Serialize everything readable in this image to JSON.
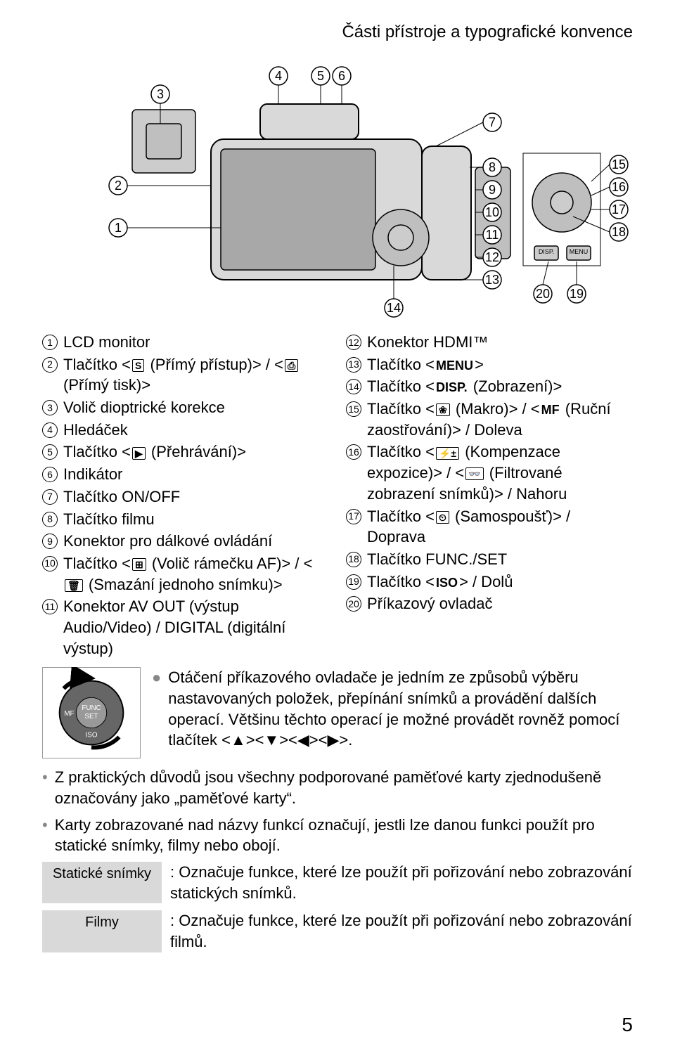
{
  "header": "Části přístroje a typografické konvence",
  "page_number": "5",
  "diagram": {
    "callouts": [
      "1",
      "2",
      "3",
      "4",
      "5",
      "6",
      "7",
      "8",
      "9",
      "10",
      "11",
      "12",
      "13",
      "14",
      "15",
      "16",
      "17",
      "18",
      "19",
      "20"
    ]
  },
  "left_items": [
    {
      "n": "1",
      "text": "LCD monitor"
    },
    {
      "n": "2",
      "text": "Tlačítko <",
      "ico": "S",
      "text2": " (Přímý přístup)> / <",
      "ico2": "⎙",
      "text3": " (Přímý tisk)>"
    },
    {
      "n": "3",
      "text": "Volič dioptrické korekce"
    },
    {
      "n": "4",
      "text": "Hledáček"
    },
    {
      "n": "5",
      "text": "Tlačítko <",
      "ico": "▶",
      "text2": " (Přehrávání)>"
    },
    {
      "n": "6",
      "text": "Indikátor"
    },
    {
      "n": "7",
      "text": "Tlačítko ON/OFF"
    },
    {
      "n": "8",
      "text": "Tlačítko filmu"
    },
    {
      "n": "9",
      "text": "Konektor pro dálkové ovládání"
    },
    {
      "n": "10",
      "text": "Tlačítko <",
      "ico": "⊞",
      "text2": " (Volič rámečku AF)> / <",
      "ico2": "🗑",
      "text3": " (Smazání jednoho snímku)>"
    },
    {
      "n": "11",
      "text": "Konektor AV OUT (výstup Audio/Video) / DIGITAL (digitální výstup)"
    }
  ],
  "right_items": [
    {
      "n": "12",
      "text": "Konektor HDMI™"
    },
    {
      "n": "13",
      "text": "Tlačítko <",
      "ico": "MENU",
      "text2": ">"
    },
    {
      "n": "14",
      "text": "Tlačítko <",
      "ico": "DISP.",
      "text2": " (Zobrazení)>"
    },
    {
      "n": "15",
      "text": "Tlačítko <",
      "ico": "❀",
      "text2": " (Makro)> / <",
      "ico2": "MF",
      "text3": " (Ruční zaostřování)> / Doleva"
    },
    {
      "n": "16",
      "text": "Tlačítko <",
      "ico": "⚡±",
      "text2": " (Kompenzace expozice)> / <",
      "ico2": "👓",
      "text3": " (Filtrované zobrazení snímků)> / Nahoru"
    },
    {
      "n": "17",
      "text": "Tlačítko <",
      "ico": "⏲",
      "text2": " (Samospoušť)> / Doprava"
    },
    {
      "n": "18",
      "text": "Tlačítko FUNC./SET"
    },
    {
      "n": "19",
      "text": "Tlačítko <",
      "ico": "ISO",
      "text2": "> / Dolů"
    },
    {
      "n": "20",
      "text": "Příkazový ovladač"
    }
  ],
  "note_bullet": "Otáčení příkazového ovladače je jedním ze způsobů výběru nastavovaných položek, přepínání snímků a provádění dalších operací. Většinu těchto operací je možné provádět rovněž pomocí tlačítek <▲><▼><◀><▶>.",
  "bullets": [
    "Z praktických důvodů jsou všechny podporované paměťové karty zjednodušeně označovány jako „paměťové karty“.",
    "Karty zobrazované nad názvy funkcí označují, jestli lze danou funkci použít pro statické snímky, filmy nebo obojí."
  ],
  "legend": [
    {
      "label": "Statické snímky",
      "text": ": Označuje funkce, které lze použít při pořizování nebo zobrazování statických snímků."
    },
    {
      "label": "Filmy",
      "text": ": Označuje funkce, které lze použít při pořizování nebo zobrazování filmů."
    }
  ],
  "dial_label": "FUNC\nSET"
}
